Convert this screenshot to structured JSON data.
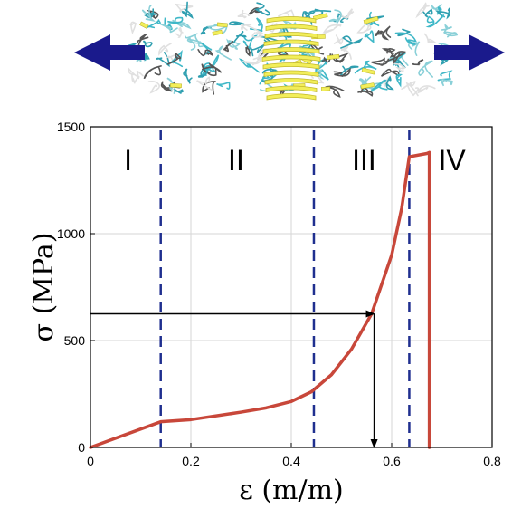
{
  "chart_data": {
    "type": "line",
    "xlabel": "ε  (m/m)",
    "ylabel": "σ (MPa)",
    "xlim": [
      0,
      0.8
    ],
    "ylim": [
      0,
      1500
    ],
    "x_ticks": [
      0,
      0.2,
      0.4,
      0.6,
      0.8
    ],
    "x_tick_labels": [
      "0",
      "0.2",
      "0.4",
      "0.6",
      "0.8"
    ],
    "y_ticks": [
      0,
      500,
      1000,
      1500
    ],
    "y_tick_labels": [
      "0",
      "500",
      "1000",
      "1500"
    ],
    "grid": true,
    "series": [
      {
        "color": "#c8473a",
        "x": [
          0,
          0.14,
          0.2,
          0.3,
          0.35,
          0.4,
          0.44,
          0.48,
          0.52,
          0.56,
          0.6,
          0.62,
          0.635,
          0.67,
          0.675,
          0.675
        ],
        "y": [
          0,
          120,
          130,
          165,
          185,
          215,
          260,
          340,
          460,
          625,
          900,
          1120,
          1360,
          1375,
          1380,
          0
        ]
      }
    ],
    "dashed_lines": {
      "color": "#1f2f8f",
      "x": [
        0.14,
        0.445,
        0.635
      ]
    },
    "regions": [
      {
        "label": "I",
        "x": 0.075
      },
      {
        "label": "II",
        "x": 0.29
      },
      {
        "label": "III",
        "x": 0.545
      },
      {
        "label": "IV",
        "x": 0.72
      }
    ],
    "annotation": {
      "color": "#000000",
      "point_x": 0.565,
      "point_y": 625
    }
  },
  "illustration": {
    "arrow_color": "#1a1a8c",
    "helix_color": "#f2ee5a",
    "chain_color": "#3fb8c8"
  }
}
